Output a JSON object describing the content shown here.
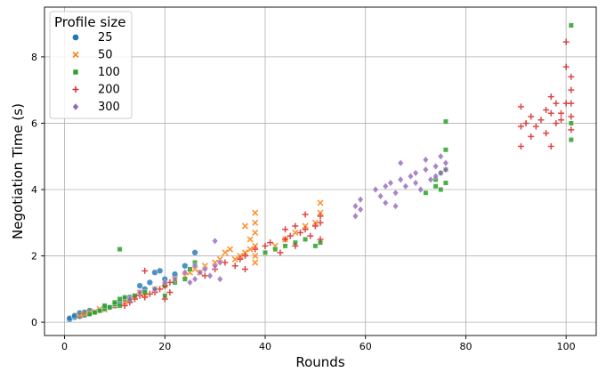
{
  "chart_data": {
    "type": "scatter",
    "xlabel": "Rounds",
    "ylabel": "Negotiation Time (s)",
    "xlim": [
      -4,
      106
    ],
    "ylim": [
      -0.4,
      9.5
    ],
    "x_ticks": [
      0,
      20,
      40,
      60,
      80,
      100
    ],
    "y_ticks": [
      0,
      2,
      4,
      6,
      8
    ],
    "grid": true,
    "legend": {
      "title": "Profile size",
      "placement": "top-left"
    },
    "series": [
      {
        "name": "25",
        "marker": "circle",
        "color": "#1f77b4",
        "points": [
          [
            1,
            0.08
          ],
          [
            1,
            0.12
          ],
          [
            2,
            0.15
          ],
          [
            2,
            0.2
          ],
          [
            3,
            0.18
          ],
          [
            3,
            0.28
          ],
          [
            4,
            0.22
          ],
          [
            4,
            0.3
          ],
          [
            5,
            0.25
          ],
          [
            5,
            0.35
          ],
          [
            6,
            0.3
          ],
          [
            7,
            0.35
          ],
          [
            8,
            0.4
          ],
          [
            8,
            0.45
          ],
          [
            9,
            0.45
          ],
          [
            10,
            0.5
          ],
          [
            11,
            0.6
          ],
          [
            12,
            0.7
          ],
          [
            13,
            0.75
          ],
          [
            15,
            1.1
          ],
          [
            16,
            1.0
          ],
          [
            17,
            1.2
          ],
          [
            18,
            1.5
          ],
          [
            19,
            1.55
          ],
          [
            20,
            1.3
          ],
          [
            22,
            1.45
          ],
          [
            24,
            1.7
          ],
          [
            26,
            2.1
          ]
        ]
      },
      {
        "name": "50",
        "marker": "x",
        "color": "#ff7f0e",
        "points": [
          [
            3,
            0.2
          ],
          [
            4,
            0.25
          ],
          [
            5,
            0.3
          ],
          [
            6,
            0.32
          ],
          [
            7,
            0.4
          ],
          [
            8,
            0.38
          ],
          [
            10,
            0.5
          ],
          [
            12,
            0.6
          ],
          [
            13,
            0.7
          ],
          [
            14,
            0.8
          ],
          [
            15,
            0.9
          ],
          [
            16,
            0.85
          ],
          [
            18,
            1.0
          ],
          [
            20,
            1.1
          ],
          [
            22,
            1.3
          ],
          [
            24,
            1.4
          ],
          [
            25,
            1.5
          ],
          [
            26,
            1.6
          ],
          [
            27,
            1.5
          ],
          [
            28,
            1.7
          ],
          [
            30,
            1.8
          ],
          [
            31,
            1.9
          ],
          [
            32,
            2.1
          ],
          [
            33,
            2.2
          ],
          [
            34,
            1.9
          ],
          [
            35,
            2.0
          ],
          [
            36,
            2.1
          ],
          [
            36,
            2.9
          ],
          [
            37,
            2.5
          ],
          [
            37,
            2.2
          ],
          [
            38,
            2.3
          ],
          [
            38,
            2.7
          ],
          [
            38,
            3.0
          ],
          [
            38,
            3.3
          ],
          [
            38,
            2.0
          ],
          [
            38,
            1.8
          ],
          [
            42,
            2.3
          ],
          [
            44,
            2.5
          ],
          [
            46,
            2.7
          ],
          [
            48,
            2.9
          ],
          [
            50,
            3.0
          ],
          [
            51,
            3.3
          ],
          [
            51,
            3.6
          ]
        ]
      },
      {
        "name": "100",
        "marker": "square",
        "color": "#2ca02c",
        "points": [
          [
            5,
            0.25
          ],
          [
            6,
            0.3
          ],
          [
            7,
            0.35
          ],
          [
            8,
            0.4
          ],
          [
            8,
            0.5
          ],
          [
            9,
            0.45
          ],
          [
            10,
            0.55
          ],
          [
            10,
            0.6
          ],
          [
            11,
            0.5
          ],
          [
            11,
            0.7
          ],
          [
            11,
            2.2
          ],
          [
            12,
            0.75
          ],
          [
            13,
            0.65
          ],
          [
            14,
            0.8
          ],
          [
            16,
            0.9
          ],
          [
            18,
            1.0
          ],
          [
            20,
            1.1
          ],
          [
            20,
            0.8
          ],
          [
            22,
            1.2
          ],
          [
            24,
            1.3
          ],
          [
            25,
            1.6
          ],
          [
            26,
            1.8
          ],
          [
            40,
            2.1
          ],
          [
            42,
            2.2
          ],
          [
            44,
            2.3
          ],
          [
            46,
            2.4
          ],
          [
            48,
            2.5
          ],
          [
            50,
            2.3
          ],
          [
            51,
            2.4
          ],
          [
            72,
            3.9
          ],
          [
            74,
            4.1
          ],
          [
            74,
            4.3
          ],
          [
            75,
            4.0
          ],
          [
            75,
            4.5
          ],
          [
            76,
            4.2
          ],
          [
            76,
            4.6
          ],
          [
            76,
            5.2
          ],
          [
            76,
            6.05
          ],
          [
            101,
            5.5
          ],
          [
            101,
            6.0
          ],
          [
            101,
            8.95
          ]
        ]
      },
      {
        "name": "200",
        "marker": "plus",
        "color": "#d62728",
        "points": [
          [
            12,
            0.5
          ],
          [
            13,
            0.6
          ],
          [
            14,
            0.7
          ],
          [
            15,
            0.8
          ],
          [
            16,
            0.75
          ],
          [
            16,
            1.55
          ],
          [
            17,
            0.85
          ],
          [
            18,
            0.9
          ],
          [
            19,
            1.0
          ],
          [
            20,
            1.1
          ],
          [
            20,
            0.7
          ],
          [
            21,
            1.2
          ],
          [
            21,
            0.9
          ],
          [
            28,
            1.4
          ],
          [
            30,
            1.6
          ],
          [
            32,
            1.8
          ],
          [
            34,
            1.7
          ],
          [
            35,
            1.9
          ],
          [
            36,
            2.0
          ],
          [
            36,
            1.6
          ],
          [
            38,
            2.2
          ],
          [
            40,
            2.3
          ],
          [
            41,
            2.4
          ],
          [
            43,
            2.1
          ],
          [
            44,
            2.5
          ],
          [
            44,
            2.8
          ],
          [
            45,
            2.6
          ],
          [
            46,
            2.9
          ],
          [
            46,
            2.3
          ],
          [
            47,
            2.7
          ],
          [
            48,
            2.8
          ],
          [
            48,
            3.25
          ],
          [
            49,
            2.6
          ],
          [
            50,
            2.9
          ],
          [
            51,
            3.0
          ],
          [
            51,
            3.2
          ],
          [
            51,
            2.5
          ],
          [
            91,
            5.3
          ],
          [
            91,
            5.9
          ],
          [
            91,
            6.5
          ],
          [
            92,
            6.0
          ],
          [
            93,
            5.6
          ],
          [
            93,
            6.2
          ],
          [
            94,
            5.9
          ],
          [
            95,
            6.1
          ],
          [
            96,
            6.4
          ],
          [
            96,
            5.7
          ],
          [
            97,
            6.3
          ],
          [
            97,
            6.8
          ],
          [
            97,
            5.3
          ],
          [
            98,
            6.0
          ],
          [
            98,
            6.6
          ],
          [
            99,
            6.3
          ],
          [
            99,
            6.1
          ],
          [
            100,
            6.6
          ],
          [
            100,
            7.7
          ],
          [
            100,
            8.45
          ],
          [
            101,
            5.8
          ],
          [
            101,
            6.2
          ],
          [
            101,
            6.6
          ],
          [
            101,
            7.0
          ],
          [
            101,
            7.4
          ]
        ]
      },
      {
        "name": "300",
        "marker": "diamond",
        "color": "#9467bd",
        "points": [
          [
            13,
            0.7
          ],
          [
            15,
            0.9
          ],
          [
            18,
            1.0
          ],
          [
            20,
            1.2
          ],
          [
            22,
            1.3
          ],
          [
            24,
            1.5
          ],
          [
            25,
            1.2
          ],
          [
            26,
            1.3
          ],
          [
            26,
            1.7
          ],
          [
            27,
            1.5
          ],
          [
            28,
            1.6
          ],
          [
            29,
            1.4
          ],
          [
            30,
            1.7
          ],
          [
            30,
            2.45
          ],
          [
            31,
            1.8
          ],
          [
            31,
            1.3
          ],
          [
            58,
            3.2
          ],
          [
            58,
            3.5
          ],
          [
            59,
            3.4
          ],
          [
            59,
            3.7
          ],
          [
            62,
            4.0
          ],
          [
            63,
            3.8
          ],
          [
            64,
            4.1
          ],
          [
            64,
            3.6
          ],
          [
            65,
            4.2
          ],
          [
            66,
            3.9
          ],
          [
            66,
            3.5
          ],
          [
            67,
            4.3
          ],
          [
            67,
            4.8
          ],
          [
            68,
            4.1
          ],
          [
            69,
            4.4
          ],
          [
            70,
            4.2
          ],
          [
            70,
            4.5
          ],
          [
            71,
            4.0
          ],
          [
            72,
            4.6
          ],
          [
            72,
            4.9
          ],
          [
            73,
            4.3
          ],
          [
            74,
            4.7
          ],
          [
            74,
            4.4
          ],
          [
            75,
            4.5
          ],
          [
            75,
            5.0
          ],
          [
            76,
            4.8
          ],
          [
            76,
            4.6
          ]
        ]
      }
    ]
  }
}
